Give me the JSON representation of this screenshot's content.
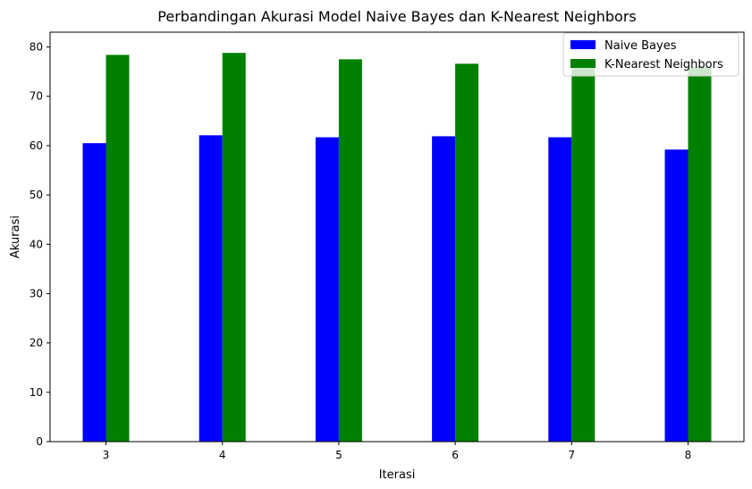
{
  "chart_data": {
    "type": "bar",
    "title": "Perbandingan Akurasi Model Naive Bayes dan K-Nearest Neighbors",
    "xlabel": "Iterasi",
    "ylabel": "Akurasi",
    "categories": [
      "3",
      "4",
      "5",
      "6",
      "7",
      "8"
    ],
    "series": [
      {
        "name": "Naive Bayes",
        "color": "#0000ff",
        "values": [
          60.5,
          62.1,
          61.7,
          61.9,
          61.7,
          59.2
        ]
      },
      {
        "name": "K-Nearest Neighbors",
        "color": "#008000",
        "values": [
          78.4,
          78.8,
          77.5,
          76.6,
          75.7,
          75.9
        ]
      }
    ],
    "ylim": [
      0,
      83
    ],
    "yticks": [
      0,
      10,
      20,
      30,
      40,
      50,
      60,
      70,
      80
    ],
    "grid": false,
    "legend": "top-right"
  }
}
